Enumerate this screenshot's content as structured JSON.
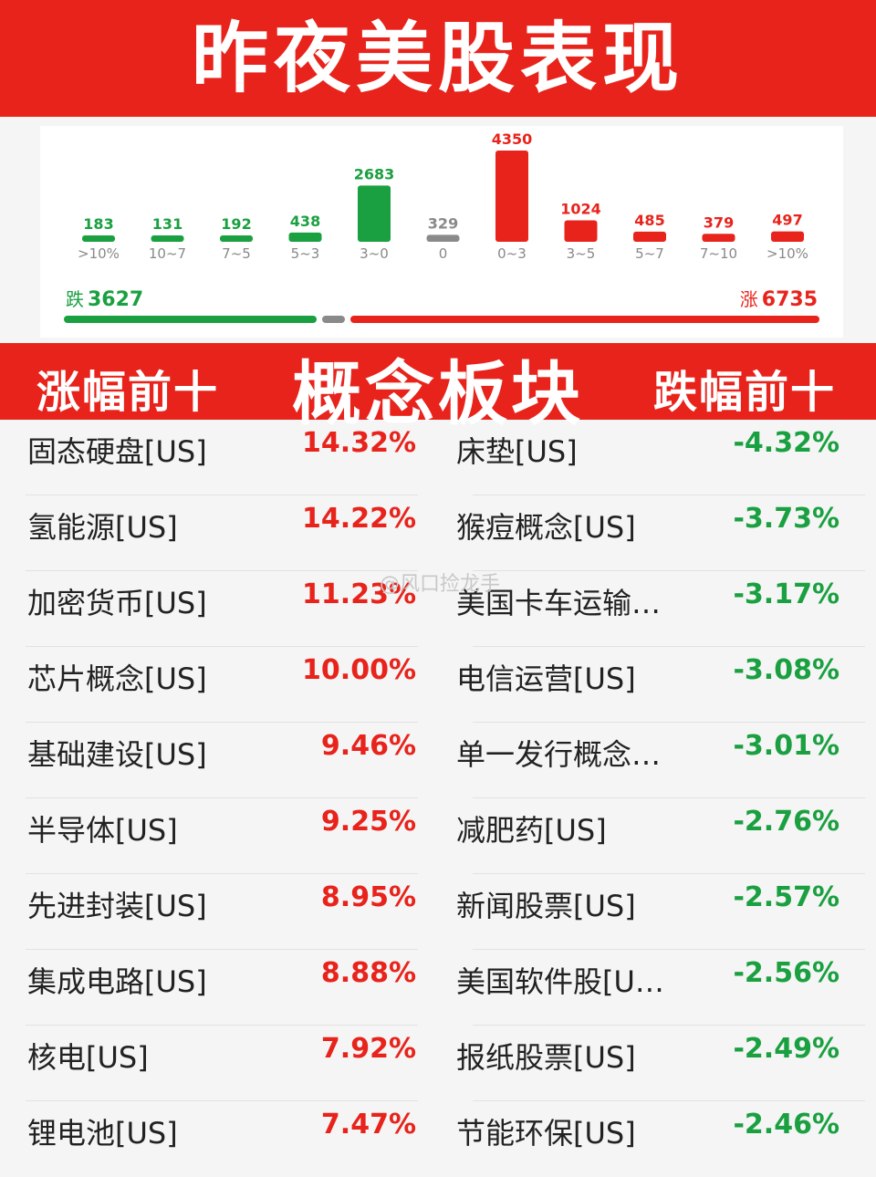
{
  "title": "昨夜美股表现",
  "chart_data": {
    "type": "bar",
    "categories": [
      ">10%",
      "10~7",
      "7~5",
      "5~3",
      "3~0",
      "0",
      "0~3",
      "3~5",
      "5~7",
      "7~10",
      ">10%"
    ],
    "values": [
      183,
      131,
      192,
      438,
      2683,
      329,
      4350,
      1024,
      485,
      379,
      497
    ],
    "colors": [
      "#1aa040",
      "#1aa040",
      "#1aa040",
      "#1aa040",
      "#1aa040",
      "#8a8a8a",
      "#e8231b",
      "#e8231b",
      "#e8231b",
      "#e8231b",
      "#e8231b"
    ]
  },
  "summary": {
    "down_label": "跌",
    "down_value": "3627",
    "up_label": "涨",
    "up_value": "6735"
  },
  "breadth": {
    "down": 3627,
    "flat": 329,
    "up": 6735
  },
  "colors": {
    "up": "#e8231b",
    "down": "#1aa040",
    "flat": "#8a8a8a"
  },
  "banner": {
    "gain_title": "涨幅前十",
    "main_title": "概念板块",
    "loss_title": "跌幅前十"
  },
  "gainers": [
    {
      "name": "固态硬盘[US]",
      "pct": "14.32%"
    },
    {
      "name": "氢能源[US]",
      "pct": "14.22%"
    },
    {
      "name": "加密货币[US]",
      "pct": "11.23%"
    },
    {
      "name": "芯片概念[US]",
      "pct": "10.00%"
    },
    {
      "name": "基础建设[US]",
      "pct": "9.46%"
    },
    {
      "name": "半导体[US]",
      "pct": "9.25%"
    },
    {
      "name": "先进封装[US]",
      "pct": "8.95%"
    },
    {
      "name": "集成电路[US]",
      "pct": "8.88%"
    },
    {
      "name": "核电[US]",
      "pct": "7.92%"
    },
    {
      "name": "锂电池[US]",
      "pct": "7.47%"
    }
  ],
  "losers": [
    {
      "name": "床垫[US]",
      "pct": "-4.32%"
    },
    {
      "name": "猴痘概念[US]",
      "pct": "-3.73%"
    },
    {
      "name": "美国卡车运输…",
      "pct": "-3.17%"
    },
    {
      "name": "电信运营[US]",
      "pct": "-3.08%"
    },
    {
      "name": "单一发行概念…",
      "pct": "-3.01%"
    },
    {
      "name": "减肥药[US]",
      "pct": "-2.76%"
    },
    {
      "name": "新闻股票[US]",
      "pct": "-2.57%"
    },
    {
      "name": "美国软件股[U…",
      "pct": "-2.56%"
    },
    {
      "name": "报纸股票[US]",
      "pct": "-2.49%"
    },
    {
      "name": "节能环保[US]",
      "pct": "-2.46%"
    }
  ],
  "watermark": "@风口捡龙手"
}
